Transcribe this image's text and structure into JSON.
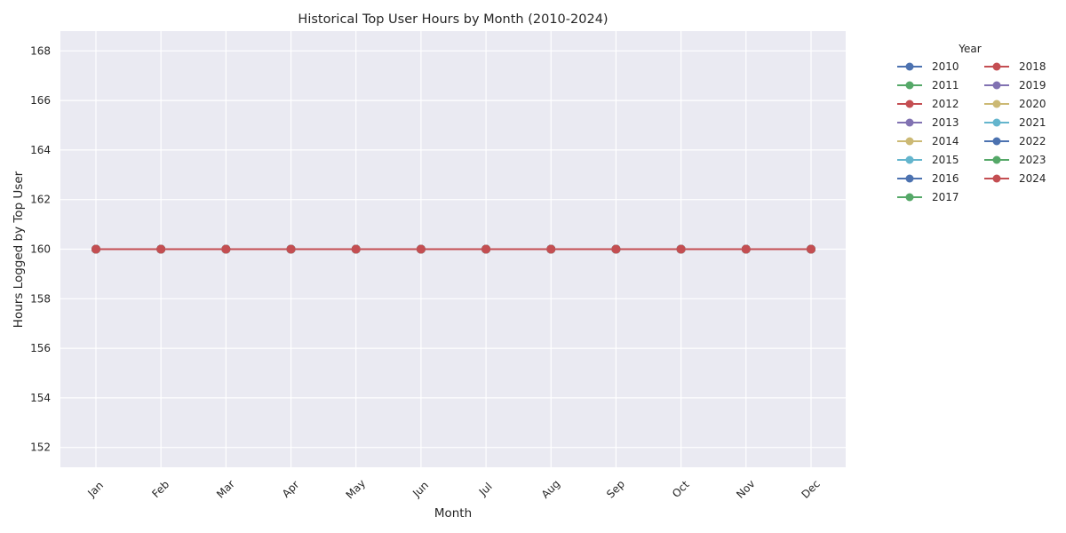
{
  "chart_data": {
    "type": "line",
    "title": "Historical Top User Hours by Month (2010-2024)",
    "xlabel": "Month",
    "ylabel": "Hours Logged by Top User",
    "categories": [
      "Jan",
      "Feb",
      "Mar",
      "Apr",
      "May",
      "Jun",
      "Jul",
      "Aug",
      "Sep",
      "Oct",
      "Nov",
      "Dec"
    ],
    "ylim": [
      151.2,
      168.8
    ],
    "yticks": [
      152,
      154,
      156,
      158,
      160,
      162,
      164,
      166,
      168
    ],
    "grid": true,
    "legend": {
      "title": "Year",
      "placement": "outside-top-right",
      "columns": 2
    },
    "series": [
      {
        "name": "2010",
        "color": "#4c72b0",
        "values": [
          160,
          160,
          160,
          160,
          160,
          160,
          160,
          160,
          160,
          160,
          160,
          160
        ]
      },
      {
        "name": "2011",
        "color": "#55a868",
        "values": [
          160,
          160,
          160,
          160,
          160,
          160,
          160,
          160,
          160,
          160,
          160,
          160
        ]
      },
      {
        "name": "2012",
        "color": "#c44e52",
        "values": [
          160,
          160,
          160,
          160,
          160,
          160,
          160,
          160,
          160,
          160,
          160,
          160
        ]
      },
      {
        "name": "2013",
        "color": "#8172b2",
        "values": [
          160,
          160,
          160,
          160,
          160,
          160,
          160,
          160,
          160,
          160,
          160,
          160
        ]
      },
      {
        "name": "2014",
        "color": "#ccb974",
        "values": [
          160,
          160,
          160,
          160,
          160,
          160,
          160,
          160,
          160,
          160,
          160,
          160
        ]
      },
      {
        "name": "2015",
        "color": "#64b5cd",
        "values": [
          160,
          160,
          160,
          160,
          160,
          160,
          160,
          160,
          160,
          160,
          160,
          160
        ]
      },
      {
        "name": "2016",
        "color": "#4c72b0",
        "values": [
          160,
          160,
          160,
          160,
          160,
          160,
          160,
          160,
          160,
          160,
          160,
          160
        ]
      },
      {
        "name": "2017",
        "color": "#55a868",
        "values": [
          160,
          160,
          160,
          160,
          160,
          160,
          160,
          160,
          160,
          160,
          160,
          160
        ]
      },
      {
        "name": "2018",
        "color": "#c44e52",
        "values": [
          160,
          160,
          160,
          160,
          160,
          160,
          160,
          160,
          160,
          160,
          160,
          160
        ]
      },
      {
        "name": "2019",
        "color": "#8172b2",
        "values": [
          160,
          160,
          160,
          160,
          160,
          160,
          160,
          160,
          160,
          160,
          160,
          160
        ]
      },
      {
        "name": "2020",
        "color": "#ccb974",
        "values": [
          160,
          160,
          160,
          160,
          160,
          160,
          160,
          160,
          160,
          160,
          160,
          160
        ]
      },
      {
        "name": "2021",
        "color": "#64b5cd",
        "values": [
          160,
          160,
          160,
          160,
          160,
          160,
          160,
          160,
          160,
          160,
          160,
          160
        ]
      },
      {
        "name": "2022",
        "color": "#4c72b0",
        "values": [
          160,
          160,
          160,
          160,
          160,
          160,
          160,
          160,
          160,
          160,
          160,
          160
        ]
      },
      {
        "name": "2023",
        "color": "#55a868",
        "values": [
          160,
          160,
          160,
          160,
          160,
          160,
          160,
          160,
          160,
          160,
          160,
          160
        ]
      },
      {
        "name": "2024",
        "color": "#c44e52",
        "values": [
          160,
          160,
          160,
          160,
          160,
          160,
          160,
          160,
          160,
          160,
          160,
          160
        ]
      }
    ],
    "colors": {
      "plot_background": "#eaeaf2",
      "grid": "#ffffff"
    }
  }
}
